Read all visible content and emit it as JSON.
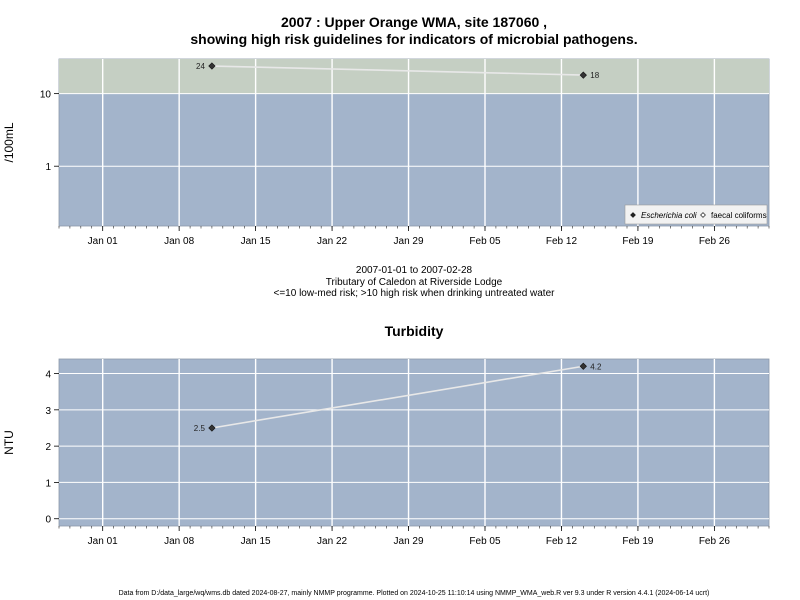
{
  "title": {
    "line1": "2007 : Upper Orange WMA, site 187060 ,",
    "line2": "showing high risk guidelines for indicators of microbial pathogens."
  },
  "subtitle": {
    "line1": "2007-01-01 to 2007-02-28",
    "line2": "Tributary of Caledon at Riverside Lodge",
    "line3": "<=10 low-med risk; >10 high risk when drinking untreated water"
  },
  "footer": "Data from D:/data_large/wq/wms.db dated 2024-08-27, mainly NMMP programme. Plotted on 2024-10-25 11:10:14 using NMMP_WMA_web.R ver 9.3 under R version 4.4.1 (2024-06-14 ucrt)",
  "colors": {
    "panel_bg": "#a3b4cb",
    "high_risk_band": "#c5cfc3",
    "grid": "#ffffff",
    "line": "#e8e8e8",
    "point": "#333333"
  },
  "chart_data": [
    {
      "type": "line",
      "title": "",
      "xlabel": "",
      "ylabel": "/100mL",
      "yscale": "log",
      "ylim": [
        0.15,
        30
      ],
      "threshold": 10,
      "threshold_note": ">10 high risk",
      "x_range": [
        "2006-12-28",
        "2007-03-03"
      ],
      "x_ticks": [
        {
          "date": "2007-01-01",
          "label": "Jan 01"
        },
        {
          "date": "2007-01-08",
          "label": "Jan 08"
        },
        {
          "date": "2007-01-15",
          "label": "Jan 15"
        },
        {
          "date": "2007-01-22",
          "label": "Jan 22"
        },
        {
          "date": "2007-01-29",
          "label": "Jan 29"
        },
        {
          "date": "2007-02-05",
          "label": "Feb 05"
        },
        {
          "date": "2007-02-12",
          "label": "Feb 12"
        },
        {
          "date": "2007-02-19",
          "label": "Feb 19"
        },
        {
          "date": "2007-02-26",
          "label": "Feb 26"
        }
      ],
      "y_ticks": [
        {
          "value": 1,
          "label": "1"
        },
        {
          "value": 10,
          "label": "10"
        }
      ],
      "series": [
        {
          "name": "Escherichia coli",
          "marker": "filled-diamond",
          "points": [
            {
              "x": "2007-01-11",
              "y": 24,
              "label": "24"
            },
            {
              "x": "2007-02-14",
              "y": 18,
              "label": "18"
            }
          ]
        },
        {
          "name": "faecal coliforms",
          "marker": "open-diamond",
          "points": []
        }
      ],
      "legend": "bottom-right",
      "grid": true
    },
    {
      "type": "line",
      "title": "Turbidity",
      "xlabel": "",
      "ylabel": "NTU",
      "ylim": [
        -0.2,
        4.4
      ],
      "x_range": [
        "2006-12-28",
        "2007-03-03"
      ],
      "x_ticks": [
        {
          "date": "2007-01-01",
          "label": "Jan 01"
        },
        {
          "date": "2007-01-08",
          "label": "Jan 08"
        },
        {
          "date": "2007-01-15",
          "label": "Jan 15"
        },
        {
          "date": "2007-01-22",
          "label": "Jan 22"
        },
        {
          "date": "2007-01-29",
          "label": "Jan 29"
        },
        {
          "date": "2007-02-05",
          "label": "Feb 05"
        },
        {
          "date": "2007-02-12",
          "label": "Feb 12"
        },
        {
          "date": "2007-02-19",
          "label": "Feb 19"
        },
        {
          "date": "2007-02-26",
          "label": "Feb 26"
        }
      ],
      "y_ticks": [
        {
          "value": 0,
          "label": "0"
        },
        {
          "value": 1,
          "label": "1"
        },
        {
          "value": 2,
          "label": "2"
        },
        {
          "value": 3,
          "label": "3"
        },
        {
          "value": 4,
          "label": "4"
        }
      ],
      "series": [
        {
          "points": [
            {
              "x": "2007-01-11",
              "y": 2.5,
              "label": "2.5"
            },
            {
              "x": "2007-02-14",
              "y": 4.2,
              "label": "4.2"
            }
          ]
        }
      ],
      "grid": true
    }
  ]
}
